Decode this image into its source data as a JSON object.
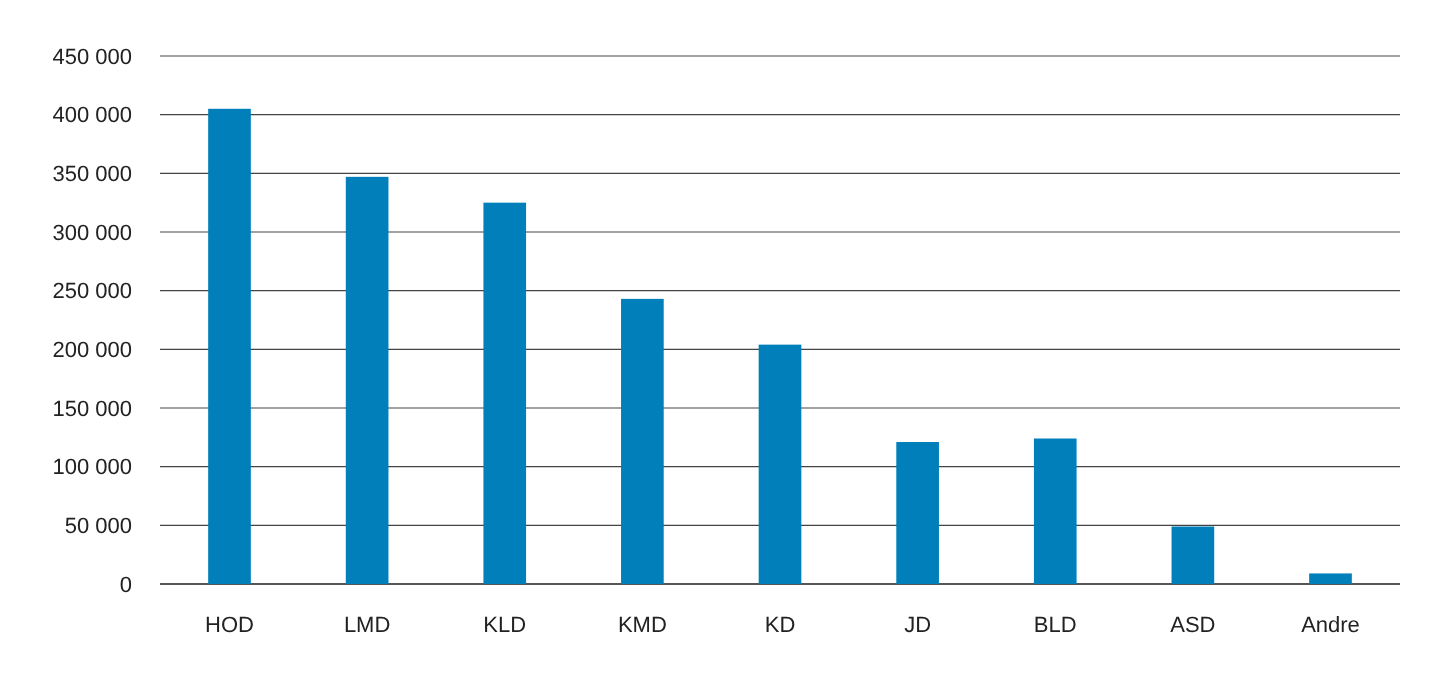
{
  "chart_data": {
    "type": "bar",
    "categories": [
      "HOD",
      "LMD",
      "KLD",
      "KMD",
      "KD",
      "JD",
      "BLD",
      "ASD",
      "Andre"
    ],
    "values": [
      405000,
      347000,
      325000,
      243000,
      204000,
      121000,
      124000,
      49000,
      9000
    ],
    "color": "#007fba",
    "ylim": [
      0,
      450000
    ],
    "yticks": [
      {
        "value": 0,
        "label": "0"
      },
      {
        "value": 50000,
        "label": "50 000"
      },
      {
        "value": 100000,
        "label": "100 000"
      },
      {
        "value": 150000,
        "label": "150 000"
      },
      {
        "value": 200000,
        "label": "200 000"
      },
      {
        "value": 250000,
        "label": "250 000"
      },
      {
        "value": 300000,
        "label": "300 000"
      },
      {
        "value": 350000,
        "label": "350 000"
      },
      {
        "value": 400000,
        "label": "400 000"
      },
      {
        "value": 450000,
        "label": "450 000"
      }
    ],
    "grid": "y"
  }
}
